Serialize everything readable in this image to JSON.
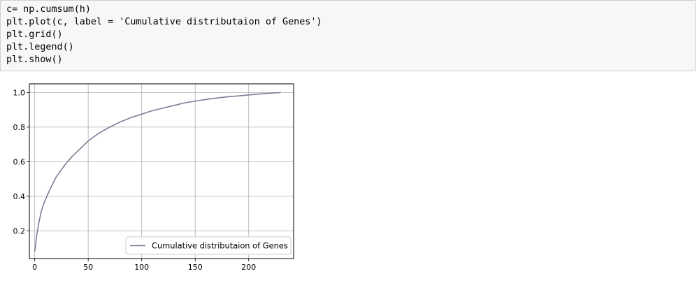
{
  "code_cell": {
    "lines": [
      "c= np.cumsum(h)",
      "plt.plot(c, label = 'Cumulative distributaion of Genes')",
      "plt.grid()",
      "plt.legend()",
      "plt.show()"
    ]
  },
  "colors": {
    "line": "#7a7f97",
    "grid": "#b0b0b0",
    "cell_background": "#f7f7f7",
    "cell_border": "#cfcfcf"
  },
  "chart_data": {
    "type": "line",
    "title": "",
    "xlabel": "",
    "ylabel": "",
    "xlim": [
      -5,
      242
    ],
    "ylim": [
      0.04,
      1.05
    ],
    "grid": true,
    "legend_position": "lower right",
    "x_ticks": [
      0,
      50,
      100,
      150,
      200
    ],
    "y_ticks": [
      0.2,
      0.4,
      0.6,
      0.8,
      1.0
    ],
    "x_tick_labels": [
      "0",
      "50",
      "100",
      "150",
      "200"
    ],
    "y_tick_labels": [
      "0.2",
      "0.4",
      "0.6",
      "0.8",
      "1.0"
    ],
    "series": [
      {
        "name": "Cumulative distributaion of Genes",
        "x": [
          0,
          2,
          4,
          6,
          8,
          10,
          15,
          20,
          25,
          30,
          35,
          40,
          50,
          60,
          70,
          80,
          90,
          100,
          110,
          120,
          130,
          140,
          150,
          160,
          170,
          180,
          190,
          200,
          210,
          220,
          230
        ],
        "y": [
          0.08,
          0.18,
          0.25,
          0.31,
          0.35,
          0.38,
          0.45,
          0.51,
          0.555,
          0.595,
          0.63,
          0.66,
          0.72,
          0.765,
          0.8,
          0.83,
          0.855,
          0.875,
          0.895,
          0.91,
          0.925,
          0.94,
          0.95,
          0.96,
          0.968,
          0.975,
          0.98,
          0.986,
          0.991,
          0.996,
          1.0
        ]
      }
    ]
  }
}
